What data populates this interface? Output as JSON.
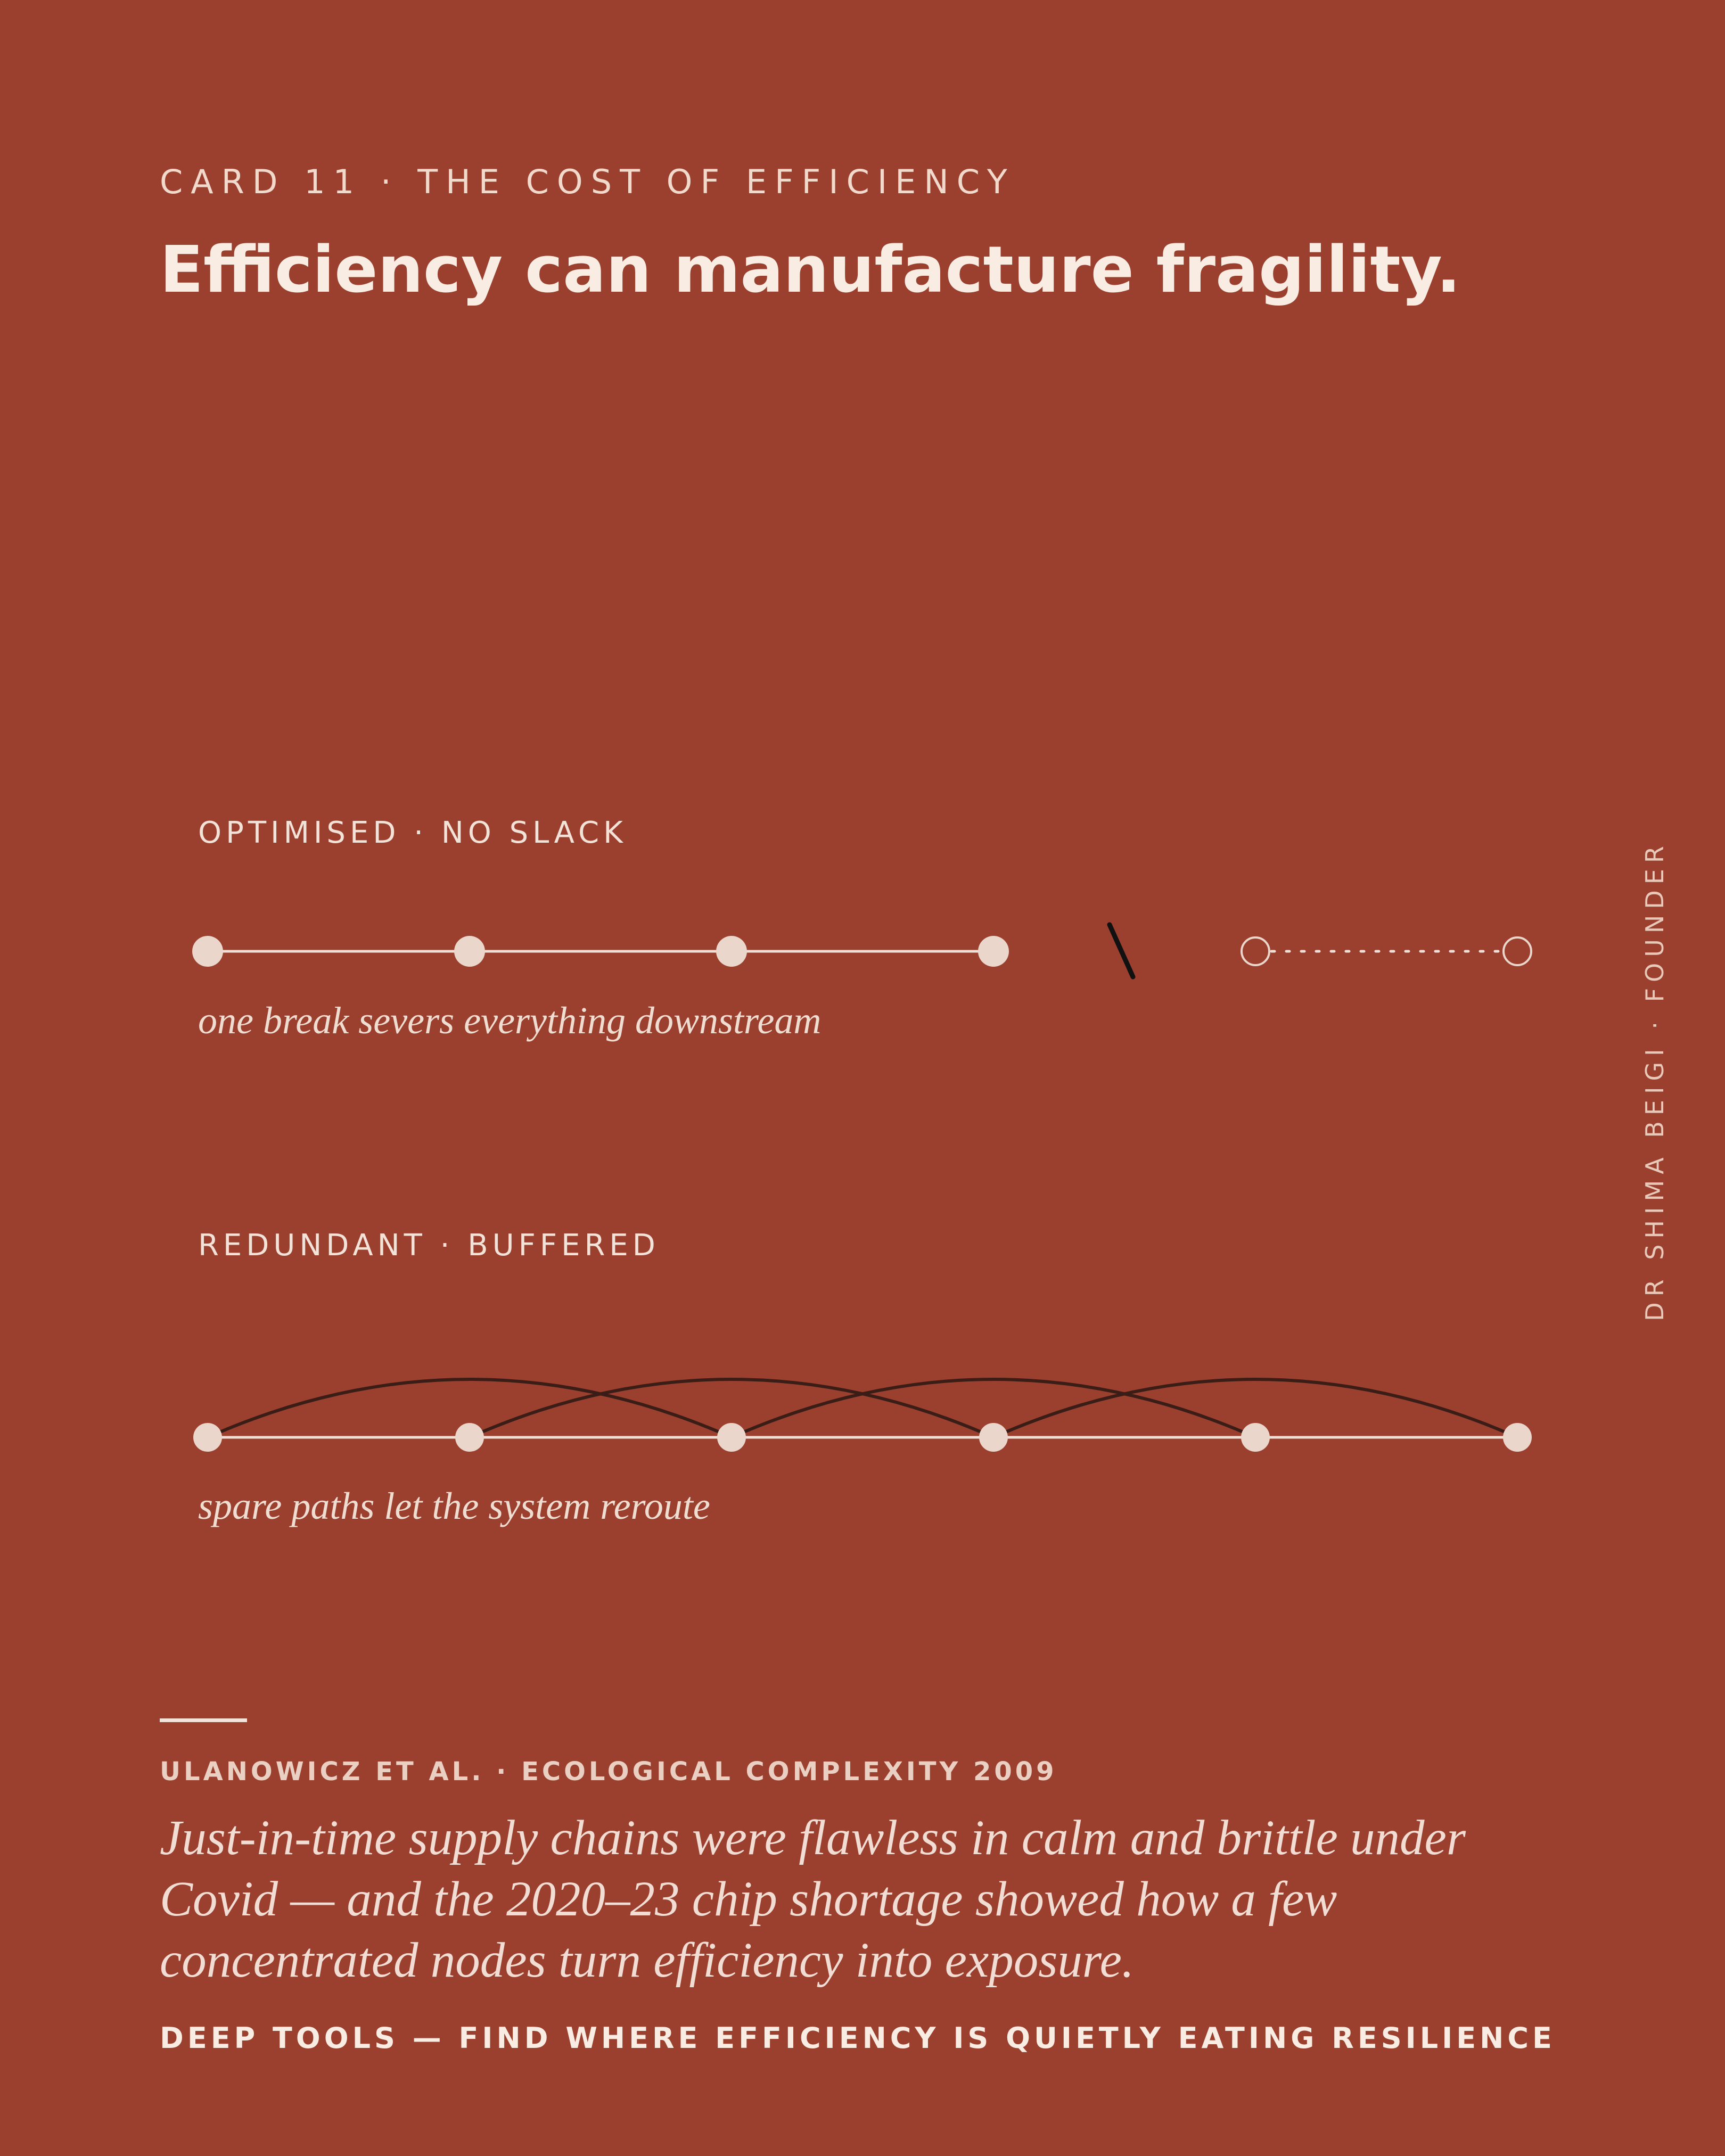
{
  "header": {
    "eyebrow": "CARD 11 · THE COST OF EFFICIENCY",
    "headline": "Efficiency can manufacture fragility."
  },
  "diagram": {
    "optimised": {
      "label": "OPTIMISED · NO SLACK",
      "caption": "one break severs everything downstream",
      "node_count": 6,
      "intact_nodes": 4,
      "severed_nodes": 2
    },
    "redundant": {
      "label": "REDUNDANT · BUFFERED",
      "caption": "spare paths let the system reroute",
      "node_count": 6,
      "bypass_links": [
        [
          0,
          2
        ],
        [
          1,
          3
        ],
        [
          2,
          4
        ],
        [
          3,
          5
        ]
      ]
    },
    "colors": {
      "background": "#9b402e",
      "node": "#ead6cb",
      "link": "#f0dfd6",
      "bypass": "#3a1d16",
      "break_mark": "#111111"
    }
  },
  "sidebar": {
    "credit": "DR SHIMA BEIGI · FOUNDER"
  },
  "footer": {
    "source": "ULANOWICZ ET AL. · ECOLOGICAL COMPLEXITY 2009",
    "quote": "Just-in-time supply chains were flawless in calm and brittle under Covid — and the 2020–23 chip shortage showed how a few concentrated nodes turn efficiency into exposure.",
    "tagline": "DEEP TOOLS — FIND WHERE EFFICIENCY IS QUIETLY EATING RESILIENCE"
  }
}
